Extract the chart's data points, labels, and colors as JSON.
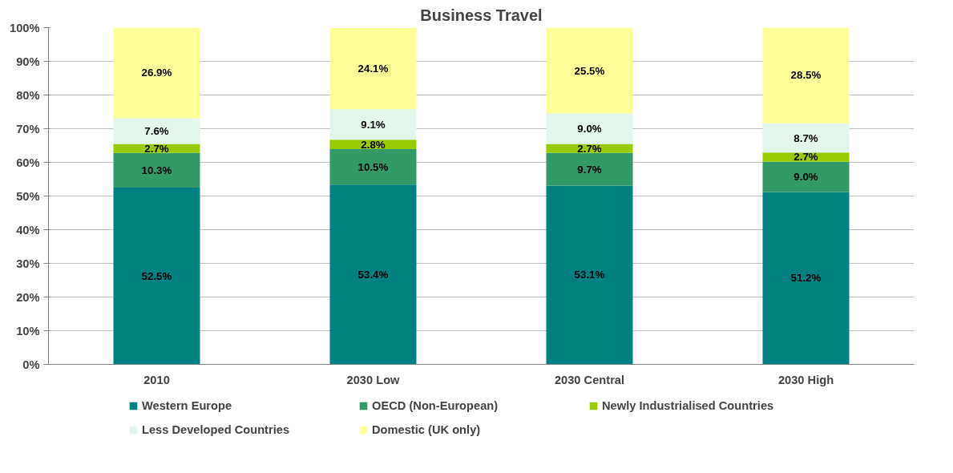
{
  "chart_data": {
    "type": "bar",
    "title": "Business Travel",
    "stacked": true,
    "categories": [
      "2010",
      "2030 Low",
      "2030 Central",
      "2030 High"
    ],
    "ylim": [
      0,
      100
    ],
    "yticks": [
      {
        "value": 0,
        "label": "0%"
      },
      {
        "value": 10,
        "label": "10%"
      },
      {
        "value": 20,
        "label": "20%"
      },
      {
        "value": 30,
        "label": "30%"
      },
      {
        "value": 40,
        "label": "40%"
      },
      {
        "value": 50,
        "label": "50%"
      },
      {
        "value": 60,
        "label": "60%"
      },
      {
        "value": 70,
        "label": "70%"
      },
      {
        "value": 80,
        "label": "80%"
      },
      {
        "value": 90,
        "label": "90%"
      },
      {
        "value": 100,
        "label": "100%"
      }
    ],
    "grid": "y",
    "legend": "bottom",
    "series": [
      {
        "name": "Western Europe",
        "color": "#008080",
        "values": [
          52.5,
          53.4,
          53.1,
          51.2
        ],
        "value_labels": [
          "52.5%",
          "53.4%",
          "53.1%",
          "51.2%"
        ]
      },
      {
        "name": "OECD (Non-European)",
        "color": "#339966",
        "values": [
          10.3,
          10.5,
          9.7,
          9.0
        ],
        "value_labels": [
          "10.3%",
          "10.5%",
          "9.7%",
          "9.0%"
        ]
      },
      {
        "name": "Newly Industrialised Countries",
        "color": "#99cc00",
        "values": [
          2.7,
          2.8,
          2.7,
          2.7
        ],
        "value_labels": [
          "2.7%",
          "2.8%",
          "2.7%",
          "2.7%"
        ]
      },
      {
        "name": "Less Developed Countries",
        "color": "#e3f6ec",
        "values": [
          7.6,
          9.1,
          9.0,
          8.7
        ],
        "value_labels": [
          "7.6%",
          "9.1%",
          "9.0%",
          "8.7%"
        ]
      },
      {
        "name": "Domestic (UK only)",
        "color": "#ffff99",
        "values": [
          26.9,
          24.1,
          25.5,
          28.5
        ],
        "value_labels": [
          "26.9%",
          "24.1%",
          "25.5%",
          "28.5%"
        ]
      }
    ]
  }
}
